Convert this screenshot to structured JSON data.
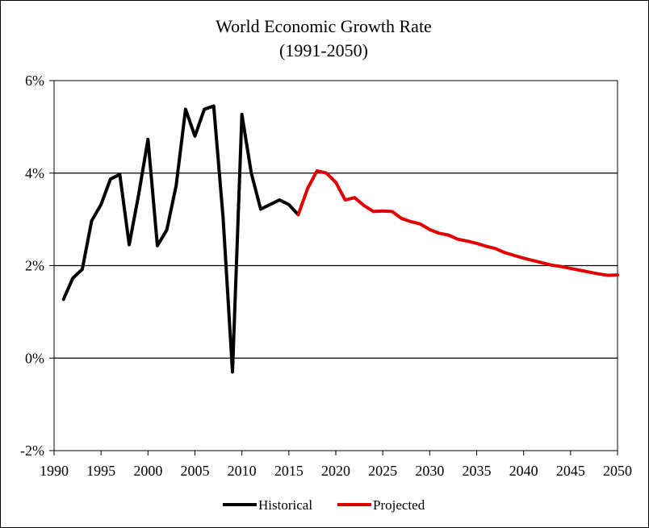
{
  "chart_data": {
    "type": "line",
    "title": "World Economic Growth Rate",
    "subtitle": "(1991-2050)",
    "xlabel": "",
    "ylabel": "",
    "xlim": [
      1990,
      2050
    ],
    "ylim": [
      -2,
      6
    ],
    "x_ticks": [
      "1990",
      "1995",
      "2000",
      "2005",
      "2010",
      "2015",
      "2020",
      "2025",
      "2030",
      "2035",
      "2040",
      "2045",
      "2050"
    ],
    "y_ticks": [
      "-2%",
      "0%",
      "2%",
      "4%",
      "6%"
    ],
    "gridlines_y": [
      0,
      2,
      4
    ],
    "legend_position": "bottom",
    "series": [
      {
        "name": "Historical",
        "color": "#000000",
        "x": [
          1991,
          1992,
          1993,
          1994,
          1995,
          1996,
          1997,
          1998,
          1999,
          2000,
          2001,
          2002,
          2003,
          2004,
          2005,
          2006,
          2007,
          2008,
          2009,
          2010,
          2011,
          2012,
          2013,
          2014,
          2015,
          2016
        ],
        "values": [
          1.27,
          1.73,
          1.92,
          2.97,
          3.32,
          3.87,
          3.97,
          2.45,
          3.53,
          4.73,
          2.43,
          2.77,
          3.73,
          5.38,
          4.8,
          5.38,
          5.45,
          3.03,
          -0.3,
          5.27,
          4.0,
          3.22,
          3.32,
          3.42,
          3.32,
          3.1
        ]
      },
      {
        "name": "Projected",
        "color": "#e00000",
        "x": [
          2016,
          2017,
          2018,
          2019,
          2020,
          2021,
          2022,
          2023,
          2024,
          2025,
          2026,
          2027,
          2028,
          2029,
          2030,
          2031,
          2032,
          2033,
          2034,
          2035,
          2036,
          2037,
          2038,
          2039,
          2040,
          2041,
          2042,
          2043,
          2044,
          2045,
          2046,
          2047,
          2048,
          2049,
          2050
        ],
        "values": [
          3.1,
          3.67,
          4.05,
          4.0,
          3.8,
          3.42,
          3.47,
          3.3,
          3.17,
          3.18,
          3.17,
          3.02,
          2.95,
          2.9,
          2.78,
          2.7,
          2.66,
          2.57,
          2.53,
          2.48,
          2.42,
          2.37,
          2.28,
          2.22,
          2.16,
          2.11,
          2.06,
          2.01,
          1.98,
          1.94,
          1.9,
          1.86,
          1.82,
          1.79,
          1.8
        ]
      }
    ]
  }
}
